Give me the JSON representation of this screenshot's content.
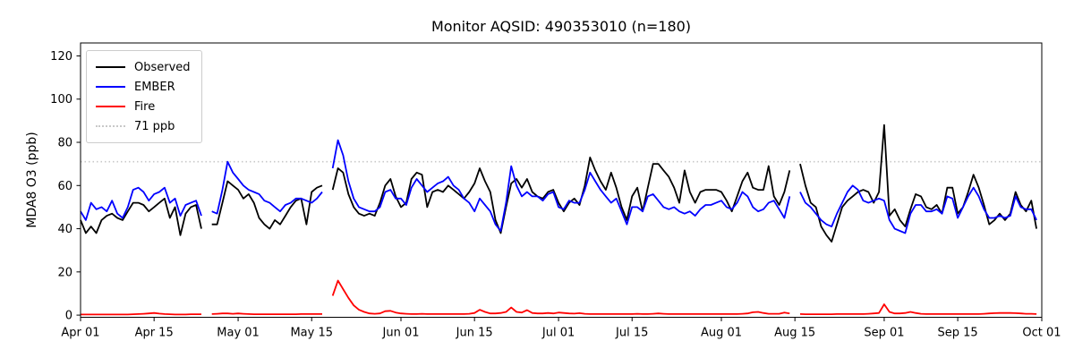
{
  "chart_data": {
    "type": "line",
    "title": "Monitor AQSID: 490353010 (n=180)",
    "ylabel": "MDA8 O3 (ppb)",
    "xlabel": "",
    "n_points": 180,
    "grid": false,
    "legend_position": "upper-left",
    "background_color": "#ffffff",
    "missing_dates": [
      "Apr 25",
      "May 18",
      "Aug 15"
    ],
    "xlim_days": [
      0,
      183
    ],
    "ylim": [
      -1,
      126
    ],
    "ytick_values": [
      0,
      20,
      40,
      60,
      80,
      100,
      120
    ],
    "xtick_labels": [
      "Apr 01",
      "Apr 15",
      "May 01",
      "May 15",
      "Jun 01",
      "Jun 15",
      "Jul 01",
      "Jul 15",
      "Aug 01",
      "Aug 15",
      "Sep 01",
      "Sep 15",
      "Oct 01"
    ],
    "xtick_days": [
      0,
      14,
      30,
      44,
      61,
      75,
      91,
      105,
      122,
      136,
      153,
      167,
      183
    ],
    "threshold": {
      "label": "71 ppb",
      "value": 71,
      "color": "#c8c8c8",
      "style": "dotted"
    },
    "x_start_date": "Apr 01",
    "x_end_date": "Sep 30",
    "values_are_daily_from_day0": true,
    "series": [
      {
        "name": "Observed",
        "color": "#000000",
        "values": [
          44,
          38,
          41,
          38,
          44,
          46,
          47,
          45,
          44,
          48,
          52,
          52,
          51,
          48,
          50,
          52,
          54,
          45,
          50,
          37,
          47,
          50,
          51,
          40,
          null,
          42,
          42,
          52,
          62,
          60,
          58,
          54,
          56,
          52,
          45,
          42,
          40,
          44,
          42,
          46,
          50,
          53,
          54,
          42,
          57,
          59,
          60,
          null,
          58,
          68,
          66,
          56,
          50,
          47,
          46,
          47,
          46,
          52,
          60,
          63,
          55,
          50,
          52,
          63,
          66,
          65,
          50,
          57,
          58,
          57,
          60,
          58,
          56,
          54,
          57,
          61,
          68,
          62,
          57,
          44,
          38,
          50,
          61,
          63,
          59,
          63,
          57,
          55,
          54,
          57,
          58,
          52,
          48,
          52,
          54,
          51,
          60,
          73,
          67,
          62,
          58,
          66,
          59,
          50,
          44,
          55,
          59,
          48,
          59,
          70,
          70,
          67,
          64,
          59,
          52,
          67,
          57,
          52,
          57,
          58,
          58,
          58,
          57,
          53,
          48,
          55,
          62,
          66,
          59,
          58,
          58,
          69,
          55,
          51,
          57,
          67,
          null,
          70,
          60,
          52,
          50,
          41,
          37,
          34,
          42,
          50,
          53,
          55,
          57,
          58,
          57,
          52,
          57,
          88,
          46,
          49,
          44,
          41,
          49,
          56,
          55,
          50,
          49,
          51,
          47,
          59,
          59,
          47,
          50,
          57,
          65,
          59,
          51,
          42,
          44,
          47,
          44,
          47,
          57,
          51,
          48,
          53,
          40
        ]
      },
      {
        "name": "EMBER",
        "color": "#0000ff",
        "values": [
          48,
          44,
          52,
          49,
          50,
          48,
          53,
          47,
          45,
          50,
          58,
          59,
          57,
          53,
          56,
          57,
          59,
          52,
          54,
          46,
          51,
          52,
          53,
          46,
          null,
          48,
          47,
          58,
          71,
          66,
          63,
          60,
          58,
          57,
          56,
          53,
          52,
          50,
          48,
          51,
          52,
          54,
          54,
          53,
          52,
          54,
          57,
          null,
          68,
          81,
          74,
          62,
          54,
          50,
          49,
          48,
          48,
          50,
          57,
          58,
          54,
          54,
          51,
          59,
          63,
          60,
          57,
          59,
          61,
          62,
          64,
          60,
          58,
          54,
          52,
          48,
          54,
          51,
          48,
          42,
          39,
          52,
          69,
          60,
          55,
          57,
          55,
          55,
          53,
          56,
          57,
          50,
          49,
          53,
          52,
          52,
          58,
          66,
          62,
          58,
          55,
          52,
          54,
          48,
          42,
          50,
          50,
          48,
          55,
          56,
          53,
          50,
          49,
          50,
          48,
          47,
          48,
          46,
          49,
          51,
          51,
          52,
          53,
          50,
          49,
          52,
          57,
          55,
          50,
          48,
          49,
          52,
          53,
          49,
          45,
          55,
          null,
          57,
          52,
          50,
          47,
          44,
          42,
          41,
          47,
          52,
          57,
          60,
          58,
          53,
          52,
          53,
          54,
          53,
          44,
          40,
          39,
          38,
          47,
          51,
          51,
          48,
          48,
          49,
          47,
          55,
          54,
          45,
          50,
          55,
          59,
          55,
          49,
          45,
          45,
          46,
          45,
          46,
          55,
          50,
          49,
          49,
          44
        ]
      },
      {
        "name": "Fire",
        "color": "#ff0000",
        "values": [
          0.3,
          0.3,
          0.3,
          0.3,
          0.3,
          0.3,
          0.3,
          0.3,
          0.3,
          0.3,
          0.4,
          0.5,
          0.6,
          0.8,
          1.0,
          0.7,
          0.5,
          0.4,
          0.3,
          0.3,
          0.3,
          0.4,
          0.4,
          0.4,
          null,
          0.5,
          0.6,
          0.8,
          0.8,
          0.6,
          0.8,
          0.6,
          0.5,
          0.4,
          0.4,
          0.4,
          0.4,
          0.4,
          0.4,
          0.4,
          0.4,
          0.4,
          0.5,
          0.5,
          0.5,
          0.5,
          0.5,
          null,
          9.0,
          16.0,
          12.0,
          8.0,
          4.5,
          2.5,
          1.5,
          0.8,
          0.6,
          0.8,
          1.8,
          2.0,
          1.2,
          0.8,
          0.6,
          0.5,
          0.5,
          0.6,
          0.5,
          0.5,
          0.5,
          0.5,
          0.5,
          0.5,
          0.5,
          0.5,
          0.6,
          1.0,
          2.5,
          1.5,
          0.8,
          0.8,
          1.0,
          1.5,
          3.5,
          1.5,
          1.2,
          2.3,
          1.0,
          0.8,
          0.8,
          1.0,
          0.8,
          1.2,
          1.0,
          0.8,
          0.7,
          0.9,
          0.6,
          0.5,
          0.5,
          0.5,
          0.5,
          0.5,
          0.5,
          0.5,
          0.5,
          0.5,
          0.6,
          0.5,
          0.5,
          0.6,
          0.8,
          0.6,
          0.5,
          0.5,
          0.5,
          0.5,
          0.5,
          0.5,
          0.5,
          0.5,
          0.5,
          0.5,
          0.5,
          0.5,
          0.5,
          0.5,
          0.6,
          0.8,
          1.3,
          1.5,
          1.0,
          0.6,
          0.6,
          0.6,
          1.2,
          0.8,
          null,
          0.5,
          0.4,
          0.4,
          0.4,
          0.4,
          0.4,
          0.4,
          0.5,
          0.5,
          0.5,
          0.5,
          0.5,
          0.5,
          0.6,
          0.8,
          1.0,
          5.0,
          1.5,
          0.8,
          0.8,
          1.0,
          1.5,
          1.0,
          0.6,
          0.5,
          0.5,
          0.5,
          0.5,
          0.5,
          0.5,
          0.5,
          0.5,
          0.5,
          0.5,
          0.5,
          0.6,
          0.8,
          0.9,
          1.0,
          1.0,
          1.0,
          0.9,
          0.8,
          0.6,
          0.6,
          0.5
        ]
      }
    ]
  }
}
